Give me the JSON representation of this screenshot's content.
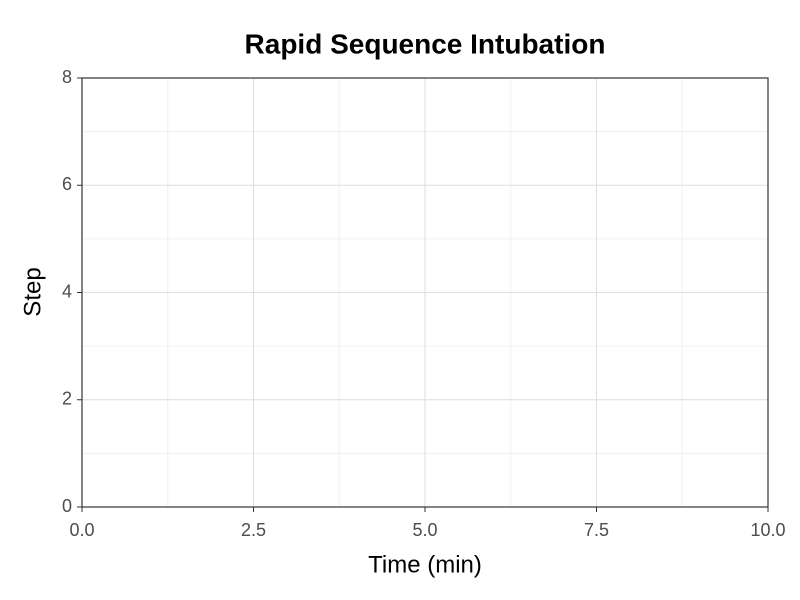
{
  "chart_data": {
    "type": "line",
    "title": "Rapid Sequence Intubation",
    "xlabel": "Time (min)",
    "ylabel": "Step",
    "xlim": [
      0,
      10
    ],
    "ylim": [
      0,
      8
    ],
    "xticks": [
      {
        "value": 0,
        "label": "0.0"
      },
      2.5,
      {
        "value": 5,
        "label": "5.0"
      },
      7.5,
      {
        "value": 10,
        "label": "10.0"
      }
    ],
    "yticks": [
      0,
      2,
      4,
      6,
      8
    ],
    "grid": true
  }
}
